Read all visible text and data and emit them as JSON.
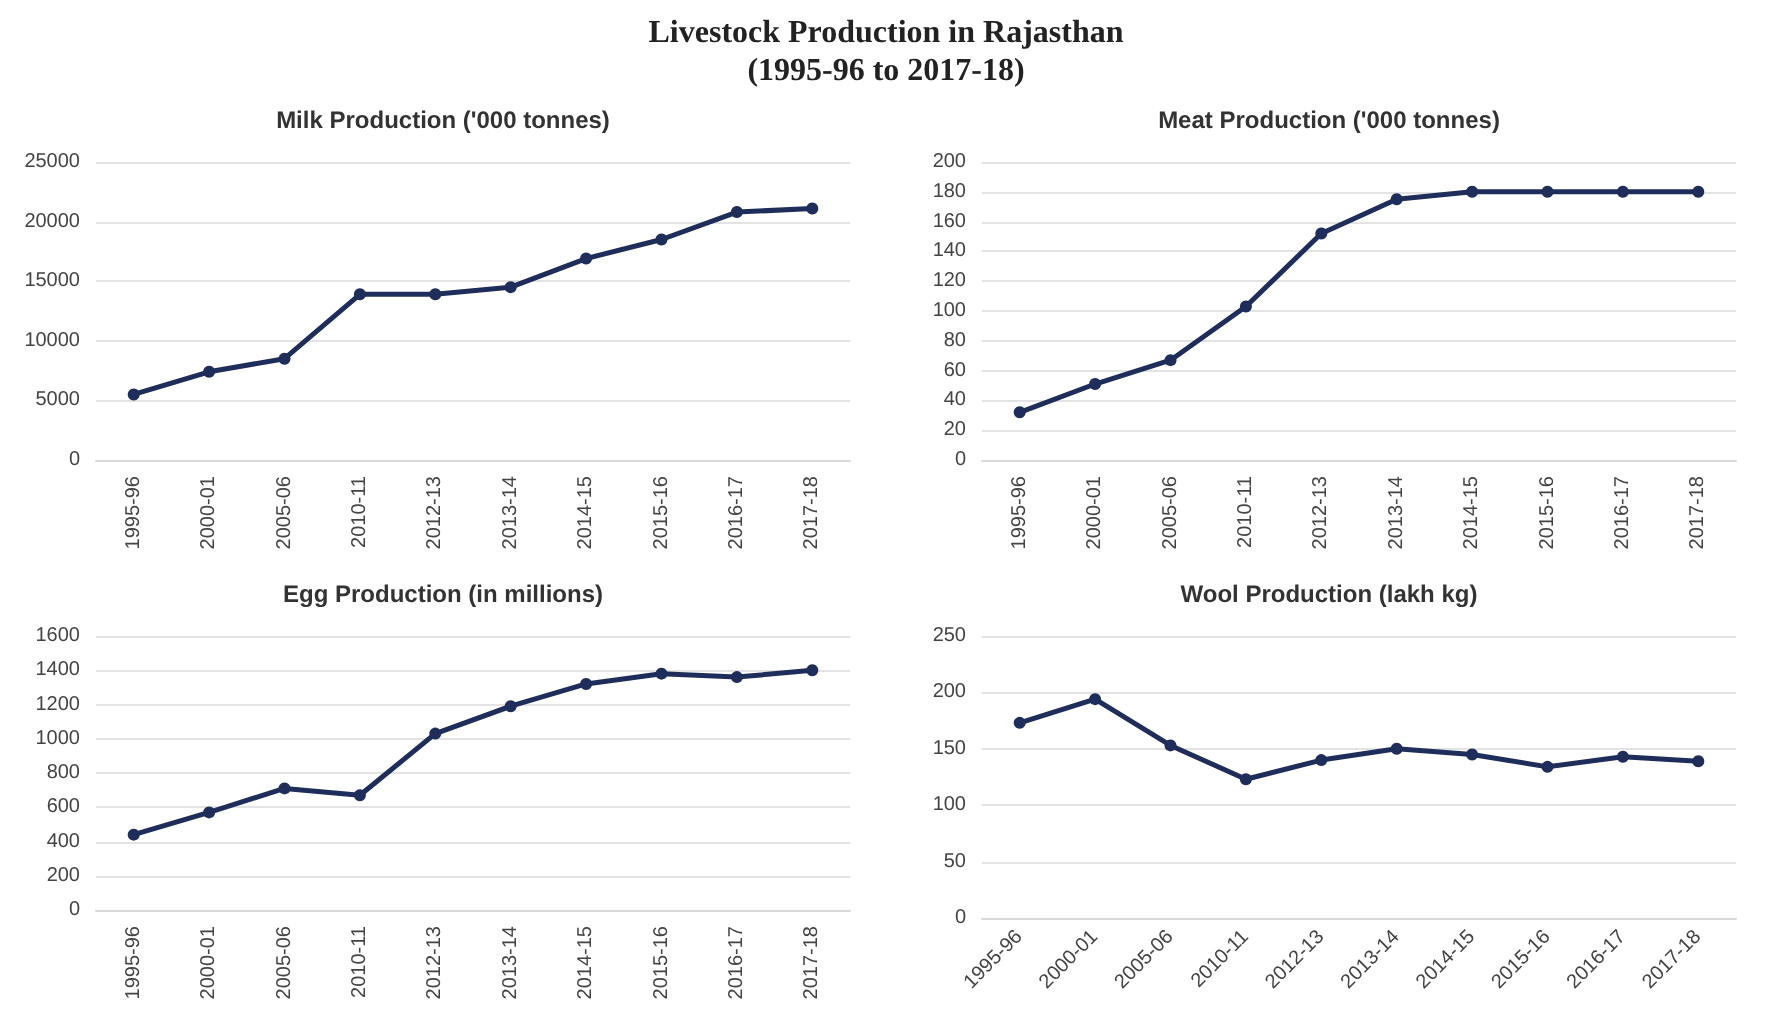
{
  "chart_data": [
    {
      "type": "other",
      "title": "Livestock Production in Rajasthan\n(1995-96 to 2017-18)"
    },
    {
      "type": "line",
      "title": "Milk Production ('000 tonnes)",
      "categories": [
        "1995-96",
        "2000-01",
        "2005-06",
        "2010-11",
        "2012-13",
        "2013-14",
        "2014-15",
        "2015-16",
        "2016-17",
        "2017-18"
      ],
      "series": [
        {
          "color": "#1f2d5a",
          "values": [
            5500,
            7400,
            8500,
            13900,
            13900,
            14500,
            16900,
            18500,
            20800,
            21100
          ]
        }
      ],
      "ylim": [
        0,
        25000
      ],
      "yticks": [
        0,
        5000,
        10000,
        15000,
        20000,
        25000
      ],
      "grid": "y",
      "marker": "circle",
      "line_style": "solid"
    },
    {
      "type": "line",
      "title": "Meat Production ('000 tonnes)",
      "categories": [
        "1995-96",
        "2000-01",
        "2005-06",
        "2010-11",
        "2012-13",
        "2013-14",
        "2014-15",
        "2015-16",
        "2016-17",
        "2017-18"
      ],
      "series": [
        {
          "color": "#1f2d5a",
          "values": [
            32,
            51,
            67,
            103,
            152,
            175,
            180,
            180,
            180,
            180
          ]
        }
      ],
      "ylim": [
        0,
        200
      ],
      "yticks": [
        0,
        20,
        40,
        60,
        80,
        100,
        120,
        140,
        160,
        180,
        200
      ],
      "grid": "y",
      "marker": "circle",
      "line_style": "solid"
    },
    {
      "type": "line",
      "title": "Egg Production (in millions)",
      "categories": [
        "1995-96",
        "2000-01",
        "2005-06",
        "2010-11",
        "2012-13",
        "2013-14",
        "2014-15",
        "2015-16",
        "2016-17",
        "2017-18"
      ],
      "series": [
        {
          "color": "#1f2d5a",
          "values": [
            440,
            570,
            710,
            670,
            1030,
            1190,
            1320,
            1380,
            1360,
            1400
          ]
        }
      ],
      "ylim": [
        0,
        1600
      ],
      "yticks": [
        0,
        200,
        400,
        600,
        800,
        1000,
        1200,
        1400,
        1600
      ],
      "grid": "y",
      "marker": "circle",
      "line_style": "solid"
    },
    {
      "type": "line",
      "title": "Wool Production (lakh kg)",
      "categories": [
        "1995-96",
        "2000-01",
        "2005-06",
        "2010-11",
        "2012-13",
        "2013-14",
        "2014-15",
        "2015-16",
        "2016-17",
        "2017-18"
      ],
      "series": [
        {
          "color": "#1f2d5a",
          "values": [
            173,
            194,
            153,
            123,
            140,
            150,
            145,
            134,
            143,
            139
          ]
        }
      ],
      "ylim": [
        0,
        250
      ],
      "yticks": [
        0,
        50,
        100,
        150,
        200,
        250
      ],
      "grid": "y",
      "marker": "circle",
      "line_style": "solid"
    }
  ]
}
